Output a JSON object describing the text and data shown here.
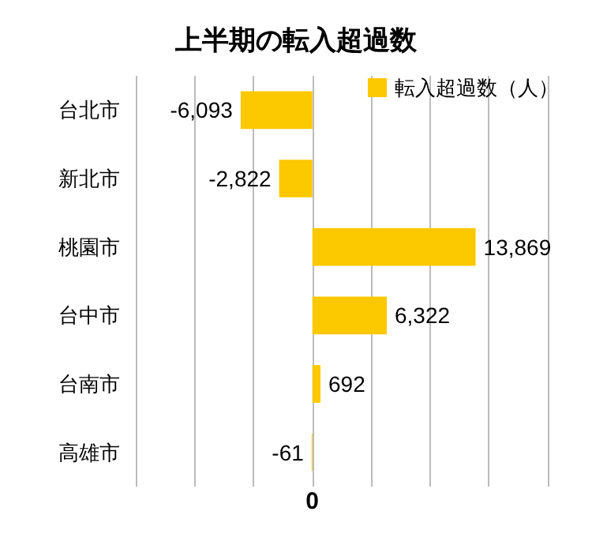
{
  "chart_data": {
    "type": "bar",
    "orientation": "horizontal",
    "title": "上半期の転入超過数",
    "categories": [
      "台北市",
      "新北市",
      "桃園市",
      "台中市",
      "台南市",
      "高雄市"
    ],
    "series": [
      {
        "name": "転入超過数（人）",
        "color": "#fcc800",
        "values": [
          -6093,
          -2822,
          13869,
          6322,
          692,
          -61
        ],
        "value_labels": [
          "-6,093",
          "-2,822",
          "13,869",
          "6,322",
          "692",
          "-61"
        ]
      }
    ],
    "xlim": [
      -15000,
      20000
    ],
    "xticks": [
      {
        "value": -15000,
        "label": null
      },
      {
        "value": -10000,
        "label": null
      },
      {
        "value": -5000,
        "label": null
      },
      {
        "value": 0,
        "label": null
      },
      {
        "value": 5000,
        "label": null
      },
      {
        "value": 10000,
        "label": null
      },
      {
        "value": 15000,
        "label": null
      },
      {
        "value": 20000,
        "label": null
      }
    ],
    "annotations": [
      "0"
    ],
    "grid": "x",
    "legend": "top right"
  }
}
